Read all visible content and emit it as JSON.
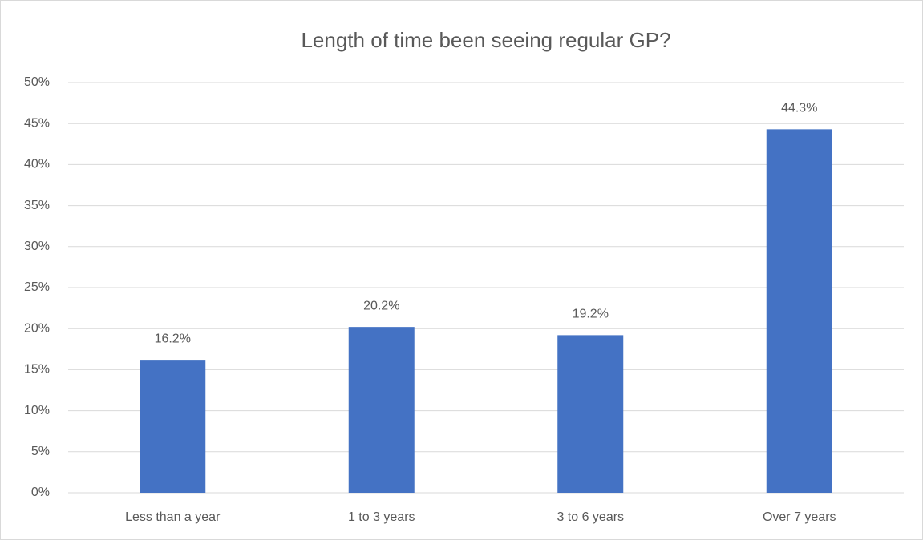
{
  "chart_data": {
    "type": "bar",
    "title": "Length of time been seeing regular GP?",
    "categories": [
      "Less than a year",
      "1 to 3 years",
      "3 to 6 years",
      "Over 7 years"
    ],
    "values": [
      16.2,
      20.2,
      19.2,
      44.3
    ],
    "value_labels": [
      "16.2%",
      "20.2%",
      "19.2%",
      "44.3%"
    ],
    "color": "#4472c4",
    "ylim": [
      0,
      50
    ],
    "yticks": [
      {
        "value": 0,
        "label": "0%"
      },
      {
        "value": 5,
        "label": "5%"
      },
      {
        "value": 10,
        "label": "10%"
      },
      {
        "value": 15,
        "label": "15%"
      },
      {
        "value": 20,
        "label": "20%"
      },
      {
        "value": 25,
        "label": "25%"
      },
      {
        "value": 30,
        "label": "30%"
      },
      {
        "value": 35,
        "label": "35%"
      },
      {
        "value": 40,
        "label": "40%"
      },
      {
        "value": 45,
        "label": "45%"
      },
      {
        "value": 50,
        "label": "50%"
      }
    ],
    "grid": true
  }
}
